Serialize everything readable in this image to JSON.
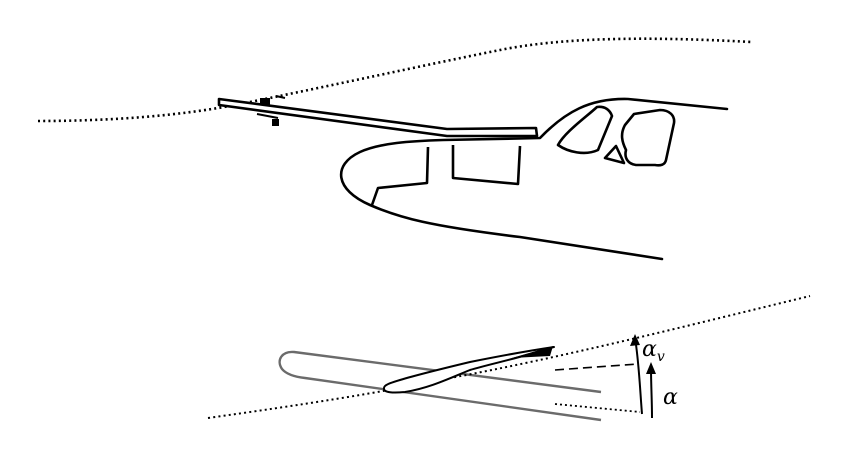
{
  "diagram": {
    "labels": {
      "alpha": "α",
      "alpha_v_base": "α",
      "alpha_v_sub": "v"
    },
    "colors": {
      "ink": "#000000",
      "boom_grey": "#6b6b6b",
      "background": "#ffffff"
    }
  }
}
